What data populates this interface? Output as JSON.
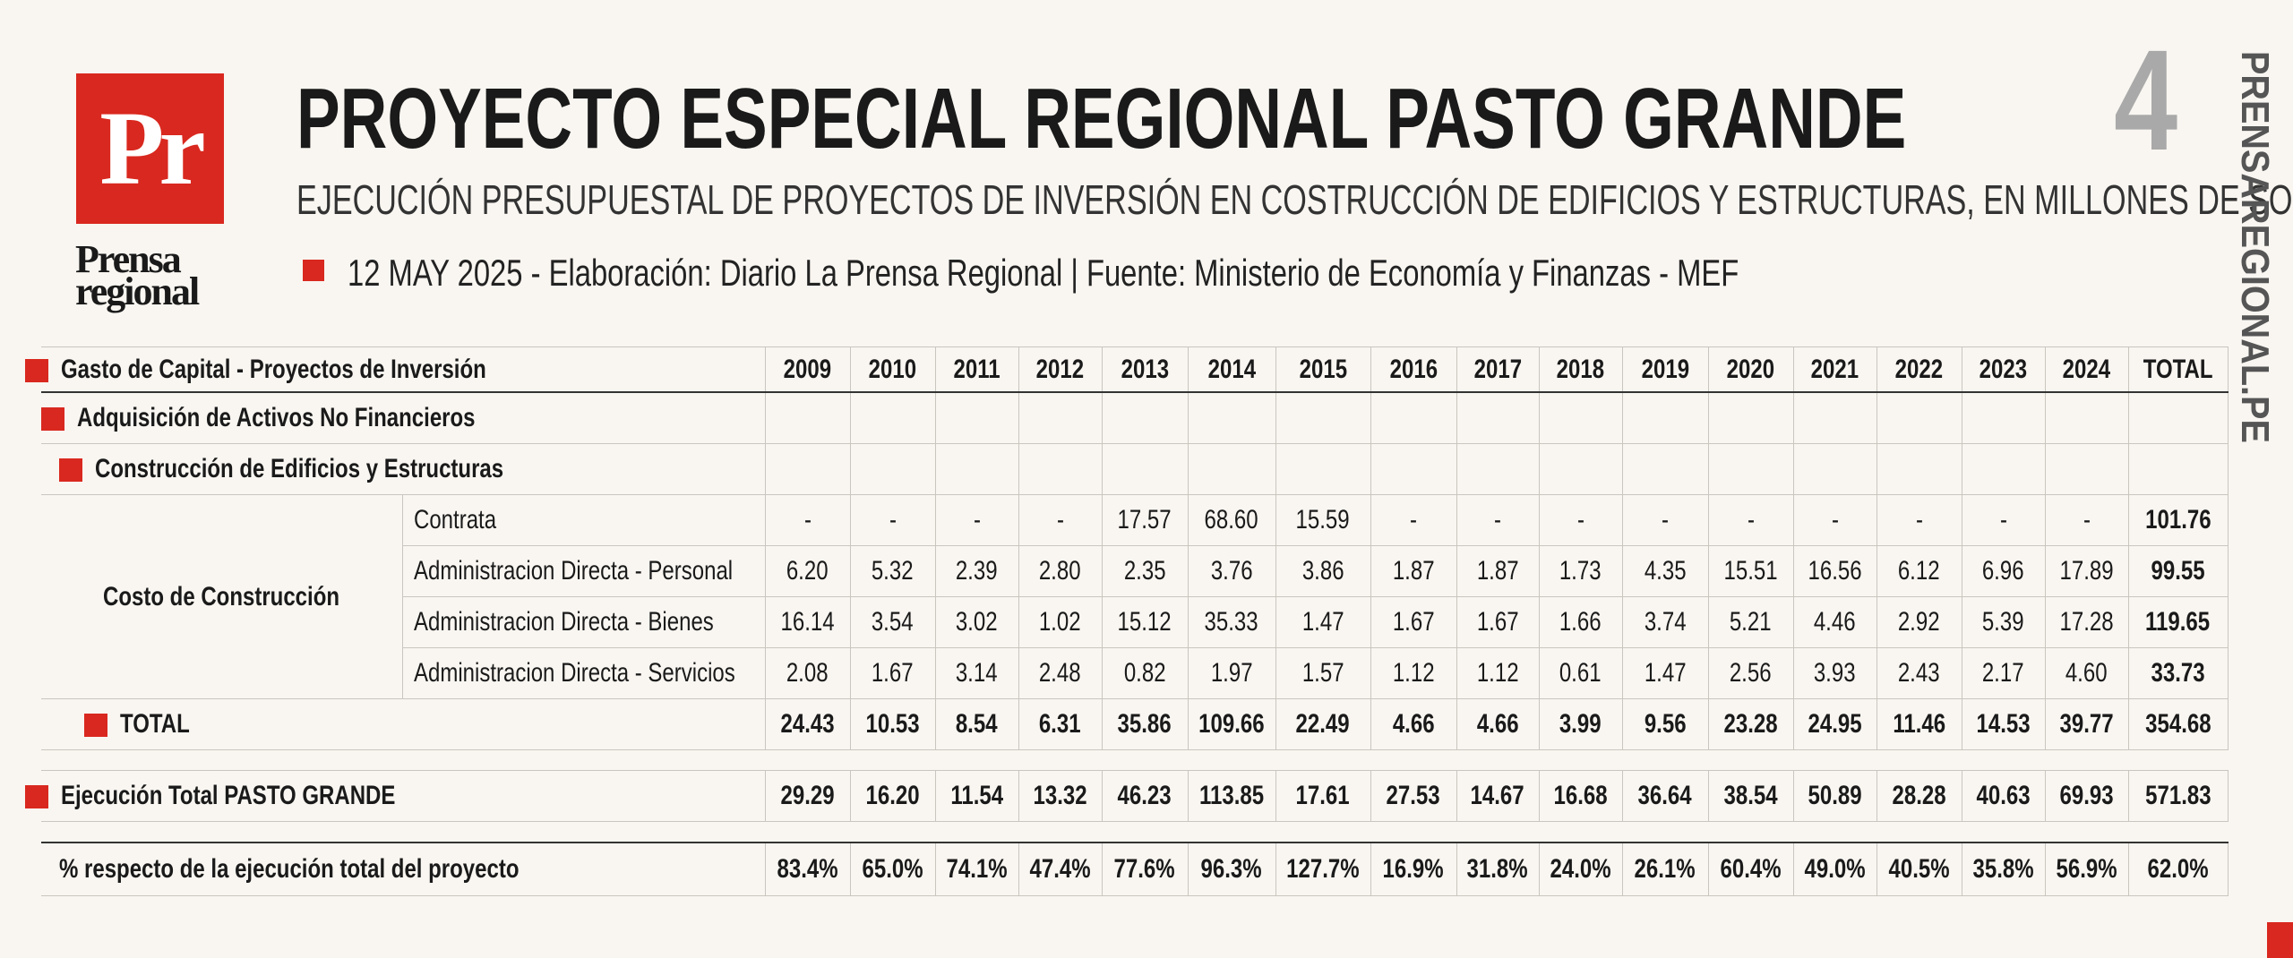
{
  "logo": {
    "mark": "Pr",
    "name_line1": "Prensa",
    "name_line2": "regional"
  },
  "header": {
    "title": "PROYECTO ESPECIAL REGIONAL PASTO GRANDE",
    "subtitle": "EJECUCIÓN PRESUPUESTAL DE PROYECTOS DE INVERSIÓN EN COSTRUCCIÓN DE EDIFICIOS Y ESTRUCTURAS, EN MILLONES DE SOLES",
    "dateline": "12 MAY 2025 -  Elaboración: Diario La Prensa Regional | Fuente: Ministerio de Economía y Finanzas - MEF",
    "page_number": "4",
    "site": "PRENSAREGIONAL.PE"
  },
  "colors": {
    "accent": "#d9281f",
    "background": "#f9f6f1"
  },
  "table": {
    "title": "Gasto de Capital - Proyectos de Inversión",
    "columns": [
      "2009",
      "2010",
      "2011",
      "2012",
      "2013",
      "2014",
      "2015",
      "2016",
      "2017",
      "2018",
      "2019",
      "2020",
      "2021",
      "2022",
      "2023",
      "2024",
      "TOTAL"
    ],
    "level1": "Adquisición de Activos No Financieros",
    "level2": "Construcción de Edificios y Estructuras",
    "group_label": "Costo de Construcción",
    "rows": [
      {
        "label": "Contrata",
        "values": [
          "-",
          "-",
          "-",
          "-",
          "17.57",
          "68.60",
          "15.59",
          "-",
          "-",
          "-",
          "-",
          "-",
          "-",
          "-",
          "-",
          "-",
          "101.76"
        ]
      },
      {
        "label": "Administracion Directa - Personal",
        "values": [
          "6.20",
          "5.32",
          "2.39",
          "2.80",
          "2.35",
          "3.76",
          "3.86",
          "1.87",
          "1.87",
          "1.73",
          "4.35",
          "15.51",
          "16.56",
          "6.12",
          "6.96",
          "17.89",
          "99.55"
        ]
      },
      {
        "label": "Administracion Directa - Bienes",
        "values": [
          "16.14",
          "3.54",
          "3.02",
          "1.02",
          "15.12",
          "35.33",
          "1.47",
          "1.67",
          "1.67",
          "1.66",
          "3.74",
          "5.21",
          "4.46",
          "2.92",
          "5.39",
          "17.28",
          "119.65"
        ]
      },
      {
        "label": "Administracion Directa - Servicios",
        "values": [
          "2.08",
          "1.67",
          "3.14",
          "2.48",
          "0.82",
          "1.97",
          "1.57",
          "1.12",
          "1.12",
          "0.61",
          "1.47",
          "2.56",
          "3.93",
          "2.43",
          "2.17",
          "4.60",
          "33.73"
        ]
      }
    ],
    "total": {
      "label": "TOTAL",
      "values": [
        "24.43",
        "10.53",
        "8.54",
        "6.31",
        "35.86",
        "109.66",
        "22.49",
        "4.66",
        "4.66",
        "3.99",
        "9.56",
        "23.28",
        "24.95",
        "11.46",
        "14.53",
        "39.77",
        "354.68"
      ]
    },
    "execution": {
      "label": "Ejecución Total PASTO GRANDE",
      "values": [
        "29.29",
        "16.20",
        "11.54",
        "13.32",
        "46.23",
        "113.85",
        "17.61",
        "27.53",
        "14.67",
        "16.68",
        "36.64",
        "38.54",
        "50.89",
        "28.28",
        "40.63",
        "69.93",
        "571.83"
      ]
    },
    "percent": {
      "label": "% respecto de la ejecución total del proyecto",
      "values": [
        "83.4%",
        "65.0%",
        "74.1%",
        "47.4%",
        "77.6%",
        "96.3%",
        "127.7%",
        "16.9%",
        "31.8%",
        "24.0%",
        "26.1%",
        "60.4%",
        "49.0%",
        "40.5%",
        "35.8%",
        "56.9%",
        "62.0%"
      ]
    }
  }
}
